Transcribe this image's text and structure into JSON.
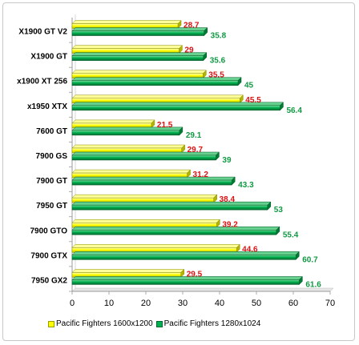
{
  "chart_data": {
    "type": "bar",
    "orientation": "horizontal",
    "categories": [
      "X1900 GT V2",
      "X1900 GT",
      "x1900 XT 256",
      "x1950 XTX",
      "7600 GT",
      "7900 GS",
      "7900 GT",
      "7950 GT",
      "7900 GTO",
      "7900 GTX",
      "7950 GX2"
    ],
    "series": [
      {
        "name": "Pacific Fighters 1600x1200",
        "color": "#ffff00",
        "label_color": "#dd1111",
        "values": [
          28.7,
          29,
          35.5,
          45.5,
          21.5,
          29.7,
          31.2,
          38.4,
          39.2,
          44.6,
          29.5
        ]
      },
      {
        "name": "Pacific Fighters 1280x1024",
        "color": "#00b050",
        "label_color": "#119944",
        "values": [
          35.8,
          35.6,
          45,
          56.4,
          29.1,
          39,
          43.3,
          53,
          55.4,
          60.7,
          61.6
        ]
      }
    ],
    "xlim": [
      0,
      70
    ],
    "xticks": [
      "0",
      "10",
      "20",
      "30",
      "40",
      "50",
      "60",
      "70"
    ],
    "grid": false,
    "legend_position": "bottom"
  }
}
